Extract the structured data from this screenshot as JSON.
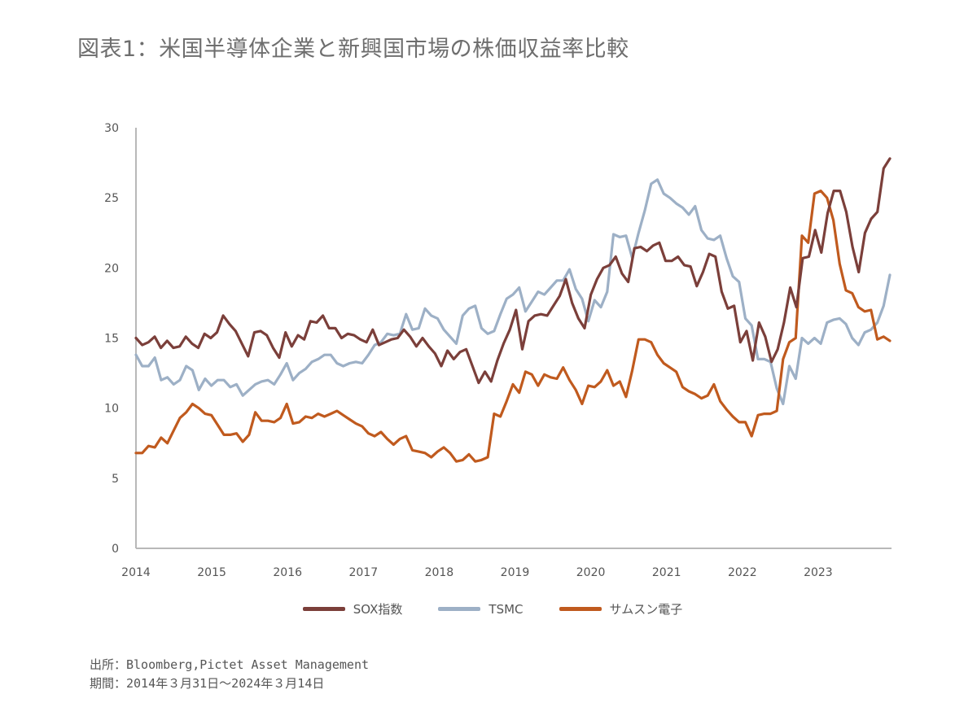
{
  "title": "図表1：米国半導体企業と新興国市場の株価収益率比較",
  "chart_data": {
    "type": "line",
    "title": "図表1：米国半導体企業と新興国市場の株価収益率比較",
    "xlabel": "",
    "ylabel": "",
    "ylim": [
      0,
      30
    ],
    "yticks": [
      "0",
      "5",
      "10",
      "15",
      "20",
      "25",
      "30"
    ],
    "xlim": [
      2014.0,
      2024.0
    ],
    "xticks": [
      "2014",
      "2015",
      "2016",
      "2017",
      "2018",
      "2019",
      "2020",
      "2021",
      "2022",
      "2023"
    ],
    "x_start": "2014-03",
    "x_step": "monthly",
    "grid": false,
    "legend_position": "bottom-center",
    "series": [
      {
        "name": "SOX指数",
        "color": "#7b3f3a",
        "values": [
          15.0,
          14.5,
          14.7,
          15.1,
          14.3,
          14.8,
          14.3,
          14.4,
          15.1,
          14.6,
          14.3,
          15.3,
          15.0,
          15.4,
          16.6,
          16.0,
          15.5,
          14.6,
          13.7,
          15.4,
          15.5,
          15.2,
          14.3,
          13.6,
          15.4,
          14.4,
          15.2,
          14.9,
          16.2,
          16.1,
          16.6,
          15.7,
          15.7,
          15.0,
          15.3,
          15.2,
          14.9,
          14.7,
          15.6,
          14.5,
          14.7,
          14.9,
          15.0,
          15.6,
          15.1,
          14.4,
          15.0,
          14.4,
          13.9,
          13.0,
          14.1,
          13.5,
          14.0,
          14.2,
          13.0,
          11.8,
          12.6,
          11.9,
          13.4,
          14.6,
          15.6,
          17.0,
          14.2,
          16.2,
          16.6,
          16.7,
          16.6,
          17.3,
          18.0,
          19.2,
          17.5,
          16.4,
          15.7,
          18.1,
          19.2,
          20.0,
          20.2,
          20.8,
          19.6,
          19.0,
          21.4,
          21.5,
          21.2,
          21.6,
          21.8,
          20.5,
          20.5,
          20.8,
          20.2,
          20.1,
          18.7,
          19.7,
          21.0,
          20.8,
          18.3,
          17.1,
          17.3,
          14.7,
          15.5,
          13.4,
          16.1,
          15.1,
          13.3,
          14.2,
          16.1,
          18.6,
          17.2,
          20.7,
          20.8,
          22.7,
          21.1,
          23.9,
          25.5,
          25.5,
          24.0,
          21.5,
          19.7,
          22.5,
          23.5,
          24.0,
          27.1,
          27.8
        ]
      },
      {
        "name": "TSMC",
        "color": "#9db0c6",
        "values": [
          13.8,
          13.0,
          13.0,
          13.6,
          12.0,
          12.2,
          11.7,
          12.0,
          13.0,
          12.7,
          11.3,
          12.1,
          11.6,
          12.0,
          12.0,
          11.5,
          11.7,
          10.9,
          11.3,
          11.7,
          11.9,
          12.0,
          11.7,
          12.4,
          13.2,
          12.0,
          12.5,
          12.8,
          13.3,
          13.5,
          13.8,
          13.8,
          13.2,
          13.0,
          13.2,
          13.3,
          13.2,
          13.8,
          14.5,
          14.7,
          15.3,
          15.2,
          15.3,
          16.7,
          15.6,
          15.7,
          17.1,
          16.6,
          16.4,
          15.6,
          15.1,
          14.6,
          16.6,
          17.1,
          17.3,
          15.7,
          15.3,
          15.5,
          16.7,
          17.8,
          18.1,
          18.6,
          16.9,
          17.6,
          18.3,
          18.1,
          18.6,
          19.1,
          19.1,
          19.9,
          18.5,
          17.8,
          16.2,
          17.7,
          17.2,
          18.3,
          22.4,
          22.2,
          22.3,
          20.7,
          22.5,
          24.1,
          26.0,
          26.3,
          25.3,
          25.0,
          24.6,
          24.3,
          23.8,
          24.4,
          22.7,
          22.1,
          22.0,
          22.3,
          20.7,
          19.4,
          19.0,
          16.4,
          15.9,
          13.5,
          13.5,
          13.3,
          11.4,
          10.3,
          13.0,
          12.1,
          15.0,
          14.6,
          15.0,
          14.6,
          16.1,
          16.3,
          16.4,
          16.0,
          15.0,
          14.5,
          15.4,
          15.6,
          16.1,
          17.3,
          19.5
        ]
      },
      {
        "name": "サムスン電子",
        "color": "#c05a1e",
        "values": [
          6.8,
          6.8,
          7.3,
          7.2,
          7.9,
          7.5,
          8.4,
          9.3,
          9.7,
          10.3,
          10.0,
          9.6,
          9.5,
          8.8,
          8.1,
          8.1,
          8.2,
          7.6,
          8.1,
          9.7,
          9.1,
          9.1,
          9.0,
          9.3,
          10.3,
          8.9,
          9.0,
          9.4,
          9.3,
          9.6,
          9.4,
          9.6,
          9.8,
          9.5,
          9.2,
          8.9,
          8.7,
          8.2,
          8.0,
          8.3,
          7.8,
          7.4,
          7.8,
          8.0,
          7.0,
          6.9,
          6.8,
          6.5,
          6.9,
          7.2,
          6.8,
          6.2,
          6.3,
          6.7,
          6.2,
          6.3,
          6.5,
          9.6,
          9.4,
          10.5,
          11.7,
          11.1,
          12.6,
          12.4,
          11.6,
          12.4,
          12.2,
          12.1,
          12.9,
          12.0,
          11.3,
          10.3,
          11.6,
          11.5,
          11.9,
          12.7,
          11.6,
          11.9,
          10.8,
          12.7,
          14.9,
          14.9,
          14.7,
          13.8,
          13.2,
          12.9,
          12.6,
          11.5,
          11.2,
          11.0,
          10.7,
          10.9,
          11.7,
          10.5,
          9.9,
          9.4,
          9.0,
          9.0,
          8.0,
          9.5,
          9.6,
          9.6,
          9.8,
          13.5,
          14.7,
          15.0,
          22.3,
          21.8,
          25.3,
          25.5,
          25.0,
          23.4,
          20.3,
          18.4,
          18.2,
          17.2,
          16.9,
          17.0,
          14.9,
          15.1,
          14.8
        ]
      }
    ]
  },
  "legend": [
    {
      "label": "SOX指数",
      "color": "#7b3f3a"
    },
    {
      "label": "TSMC",
      "color": "#9db0c6"
    },
    {
      "label": "サムスン電子",
      "color": "#c05a1e"
    }
  ],
  "footer": {
    "source": "出所：Bloomberg,Pictet Asset Management",
    "period": "期間：2014年３月31日～2024年３月14日"
  }
}
